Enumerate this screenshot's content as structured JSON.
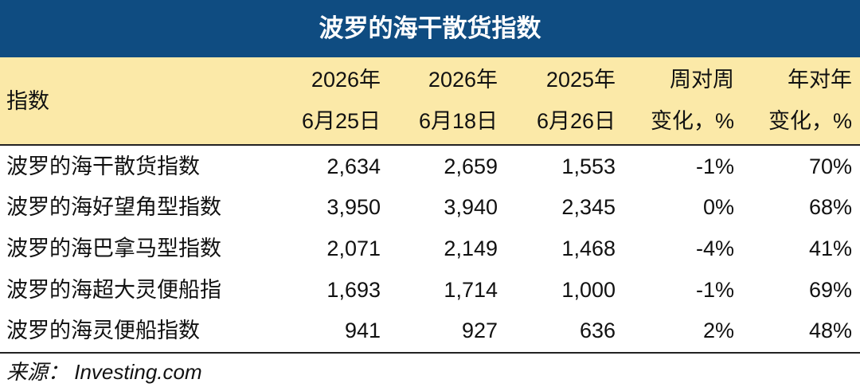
{
  "header": {
    "title": "波罗的海干散货指数"
  },
  "table": {
    "columns": [
      [
        "指数"
      ],
      [
        "2026年",
        "6月25日"
      ],
      [
        "2026年",
        "6月18日"
      ],
      [
        "2025年",
        "6月26日"
      ],
      [
        "周对周",
        "变化，%"
      ],
      [
        "年对年",
        "变化，%"
      ]
    ],
    "rows": [
      [
        "波罗的海干散货指数",
        "2,634",
        "2,659",
        "1,553",
        "-1%",
        "70%"
      ],
      [
        "波罗的海好望角型指数",
        "3,950",
        "3,940",
        "2,345",
        "0%",
        "68%"
      ],
      [
        "波罗的海巴拿马型指数",
        "2,071",
        "2,149",
        "1,468",
        "-4%",
        "41%"
      ],
      [
        "波罗的海超大灵便船指",
        "1,693",
        "1,714",
        "1,000",
        "-1%",
        "69%"
      ],
      [
        "波罗的海灵便船指数",
        "941",
        "927",
        "636",
        "2%",
        "48%"
      ]
    ]
  },
  "footer": {
    "source": "来源：  Investing.com"
  }
}
